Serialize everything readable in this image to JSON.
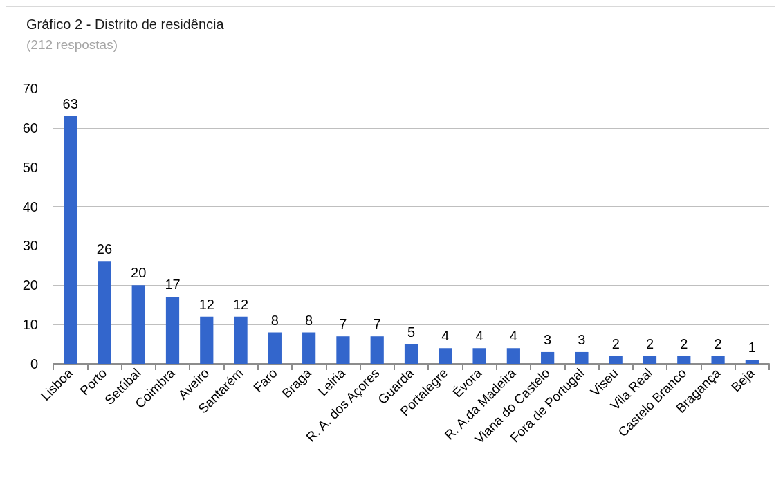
{
  "chart_data": {
    "type": "bar",
    "title": "Gráfico 2 - Distrito de residência",
    "subtitle": "(212 respostas)",
    "categories": [
      "Lisboa",
      "Porto",
      "Setúbal",
      "Coimbra",
      "Aveiro",
      "Santarém",
      "Faro",
      "Braga",
      "Leiria",
      "R. A. dos Açores",
      "Guarda",
      "Portalegre",
      "Évora",
      "R. A.da Madeira",
      "Viana do Castelo",
      "Fora de Portugal",
      "Viseu",
      "Vila Real",
      "Castelo Branco",
      "Bragança",
      "Beja"
    ],
    "values": [
      63,
      26,
      20,
      17,
      12,
      12,
      8,
      8,
      7,
      7,
      5,
      4,
      4,
      4,
      3,
      3,
      2,
      2,
      2,
      2,
      1
    ],
    "color": "#3366cc",
    "ylim": [
      0,
      70
    ],
    "yticks": [
      0,
      10,
      20,
      30,
      40,
      50,
      60,
      70
    ],
    "grid": "y",
    "data_labels": true
  }
}
